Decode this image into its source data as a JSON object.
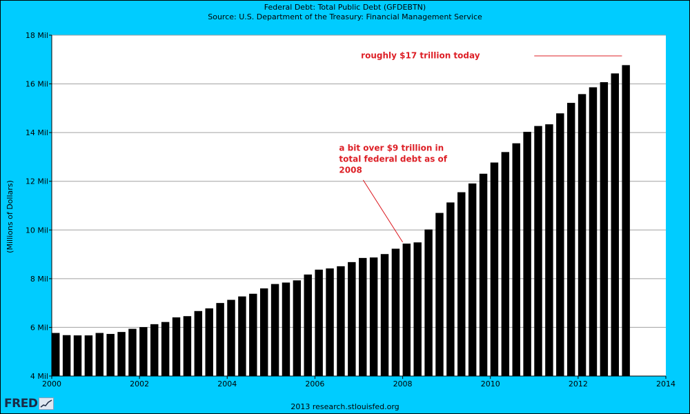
{
  "chart_data": {
    "type": "bar",
    "title": "Federal Debt: Total Public Debt (GFDEBTN)",
    "subtitle": "Source: U.S. Department of the Treasury: Financial Management Service",
    "xlabel": "",
    "ylabel": "(Millions of Dollars)",
    "y_unit": "Mil",
    "x_range": [
      2000,
      2014
    ],
    "ylim": [
      4,
      18
    ],
    "x_ticks": [
      2000,
      2002,
      2004,
      2006,
      2008,
      2010,
      2012,
      2014
    ],
    "y_ticks": [
      4,
      6,
      8,
      10,
      12,
      14,
      16,
      18
    ],
    "y_tick_labels": [
      "4 Mil",
      "6 Mil",
      "8 Mil",
      "10 Mil",
      "12 Mil",
      "14 Mil",
      "16 Mil",
      "18 Mil"
    ],
    "grid": "horizontal",
    "bar_color": "#000000",
    "background": "#ffffff",
    "frame_color": "#00ccff",
    "x": [
      2000.0,
      2000.25,
      2000.5,
      2000.75,
      2001.0,
      2001.25,
      2001.5,
      2001.75,
      2002.0,
      2002.25,
      2002.5,
      2002.75,
      2003.0,
      2003.25,
      2003.5,
      2003.75,
      2004.0,
      2004.25,
      2004.5,
      2004.75,
      2005.0,
      2005.25,
      2005.5,
      2005.75,
      2006.0,
      2006.25,
      2006.5,
      2006.75,
      2007.0,
      2007.25,
      2007.5,
      2007.75,
      2008.0,
      2008.25,
      2008.5,
      2008.75,
      2009.0,
      2009.25,
      2009.5,
      2009.75,
      2010.0,
      2010.25,
      2010.5,
      2010.75,
      2011.0,
      2011.25,
      2011.5,
      2011.75,
      2012.0,
      2012.25,
      2012.5,
      2012.75,
      2013.0
    ],
    "values": [
      5.77,
      5.68,
      5.67,
      5.67,
      5.77,
      5.73,
      5.81,
      5.94,
      6.01,
      6.13,
      6.22,
      6.41,
      6.46,
      6.67,
      6.78,
      7.0,
      7.13,
      7.27,
      7.38,
      7.6,
      7.78,
      7.84,
      7.93,
      8.17,
      8.37,
      8.42,
      8.51,
      8.68,
      8.85,
      8.87,
      9.01,
      9.23,
      9.44,
      9.49,
      10.02,
      10.7,
      11.13,
      11.55,
      11.91,
      12.31,
      12.77,
      13.2,
      13.56,
      14.03,
      14.27,
      14.34,
      14.79,
      15.22,
      15.58,
      15.86,
      16.07,
      16.43,
      16.77
    ],
    "annotations": [
      {
        "text": "roughly $17 trillion today",
        "x": 2007.05,
        "y": 17.05,
        "color": "#dd1f26"
      },
      {
        "lines": [
          "a bit over $9 trillion in",
          "total federal debt as of",
          "2008"
        ],
        "x": 2006.55,
        "y": 13.25,
        "color": "#dd1f26"
      }
    ],
    "annotation_lines": [
      {
        "x1": 2011.0,
        "y1": 17.15,
        "x2": 2013.0,
        "y2": 17.15,
        "color": "#dd1f26"
      },
      {
        "x1": 2007.1,
        "y1": 12.05,
        "x2": 2008.0,
        "y2": 9.5,
        "color": "#dd1f26"
      }
    ]
  },
  "footer": {
    "logo_text": "FRED",
    "credit": "2013 research.stlouisfed.org"
  }
}
